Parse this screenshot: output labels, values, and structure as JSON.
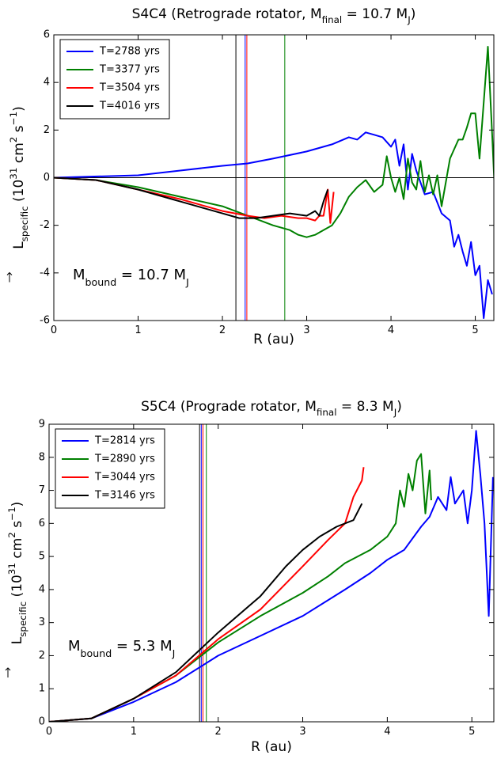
{
  "chart_data": [
    {
      "type": "line",
      "title": [
        {
          "text": "S4C4 (Retrograde rotator,  M"
        },
        {
          "text": "final",
          "shift": "sub"
        },
        {
          "text": " = 10.7 M"
        },
        {
          "text": "J",
          "shift": "sub"
        },
        {
          "text": ")"
        }
      ],
      "xlabel": [
        {
          "text": "R (au)"
        }
      ],
      "ylabel": [
        {
          "text": "L"
        },
        {
          "text": "specific",
          "shift": "sub"
        },
        {
          "text": " (10"
        },
        {
          "text": "31",
          "shift": "super"
        },
        {
          "text": " cm"
        },
        {
          "text": "2",
          "shift": "super"
        },
        {
          "text": " s"
        },
        {
          "text": "−1",
          "shift": "super"
        },
        {
          "text": ")"
        }
      ],
      "annotation": [
        {
          "text": "M"
        },
        {
          "text": "bound",
          "shift": "sub"
        },
        {
          "text": " = 10.7 M"
        },
        {
          "text": "J",
          "shift": "sub"
        }
      ],
      "xlim": [
        0,
        5.22
      ],
      "ylim": [
        -6,
        6
      ],
      "xticks": [
        0,
        1,
        2,
        3,
        4,
        5
      ],
      "yticks": [
        -6,
        -4,
        -2,
        0,
        2,
        4,
        6
      ],
      "hline": 0,
      "legend": "upper left",
      "series": [
        {
          "name": "T=2788 yrs",
          "color": "#0000ff",
          "vline": 2.27,
          "x": [
            0,
            1,
            1.5,
            2,
            2.3,
            2.6,
            3,
            3.3,
            3.5,
            3.6,
            3.7,
            3.8,
            3.9,
            4.0,
            4.05,
            4.1,
            4.15,
            4.2,
            4.25,
            4.3,
            4.4,
            4.5,
            4.6,
            4.7,
            4.75,
            4.8,
            4.85,
            4.9,
            4.95,
            5.0,
            5.05,
            5.1,
            5.15,
            5.2
          ],
          "values": [
            0,
            0.1,
            0.3,
            0.5,
            0.6,
            0.8,
            1.1,
            1.4,
            1.7,
            1.6,
            1.9,
            1.8,
            1.7,
            1.3,
            1.6,
            0.5,
            1.4,
            -0.5,
            1.0,
            0.3,
            -0.7,
            -0.6,
            -1.5,
            -1.8,
            -2.9,
            -2.4,
            -3.1,
            -3.7,
            -2.7,
            -4.1,
            -3.7,
            -5.9,
            -4.3,
            -4.9
          ]
        },
        {
          "name": "T=3377 yrs",
          "color": "#008000",
          "vline": 2.74,
          "x": [
            0,
            0.5,
            1,
            1.5,
            2,
            2.3,
            2.6,
            2.8,
            2.9,
            3.0,
            3.1,
            3.2,
            3.3,
            3.4,
            3.5,
            3.6,
            3.7,
            3.8,
            3.9,
            3.95,
            4.0,
            4.05,
            4.1,
            4.15,
            4.2,
            4.25,
            4.3,
            4.35,
            4.4,
            4.45,
            4.5,
            4.55,
            4.6,
            4.7,
            4.8,
            4.85,
            4.9,
            4.95,
            5.0,
            5.05,
            5.15,
            5.2,
            5.25
          ],
          "values": [
            0,
            -0.1,
            -0.4,
            -0.8,
            -1.2,
            -1.6,
            -2.0,
            -2.2,
            -2.4,
            -2.5,
            -2.4,
            -2.2,
            -2.0,
            -1.5,
            -0.8,
            -0.4,
            -0.1,
            -0.6,
            -0.3,
            0.9,
            0,
            -0.6,
            0,
            -0.9,
            0.8,
            -0.2,
            -0.5,
            0.7,
            -0.6,
            0.1,
            -0.7,
            0.1,
            -1.2,
            0.8,
            1.6,
            1.6,
            2.1,
            2.7,
            2.7,
            0.8,
            5.5,
            1.8,
            -2.1
          ]
        },
        {
          "name": "T=3504 yrs",
          "color": "#ff0000",
          "vline": 2.29,
          "x": [
            0,
            0.5,
            1,
            1.5,
            2,
            2.3,
            2.5,
            2.7,
            2.9,
            3.0,
            3.1,
            3.15,
            3.2,
            3.25,
            3.28,
            3.32
          ],
          "values": [
            0,
            -0.1,
            -0.5,
            -0.9,
            -1.4,
            -1.6,
            -1.7,
            -1.6,
            -1.7,
            -1.7,
            -1.8,
            -1.6,
            -1.6,
            -0.5,
            -1.9,
            -0.6
          ]
        },
        {
          "name": "T=4016 yrs",
          "color": "#000000",
          "vline": 2.16,
          "x": [
            0,
            0.5,
            1,
            1.5,
            2,
            2.2,
            2.4,
            2.6,
            2.8,
            3,
            3.1,
            3.15,
            3.2,
            3.25
          ],
          "values": [
            0,
            -0.1,
            -0.5,
            -1.0,
            -1.5,
            -1.7,
            -1.7,
            -1.6,
            -1.5,
            -1.6,
            -1.4,
            -1.6,
            -1.0,
            -0.5
          ]
        }
      ]
    },
    {
      "type": "line",
      "title": [
        {
          "text": "S5C4 (Prograde rotator,  M"
        },
        {
          "text": "final",
          "shift": "sub"
        },
        {
          "text": " = 8.3 M"
        },
        {
          "text": "J",
          "shift": "sub"
        },
        {
          "text": ")"
        }
      ],
      "xlabel": [
        {
          "text": "R (au)"
        }
      ],
      "ylabel": [
        {
          "text": "L"
        },
        {
          "text": "specific",
          "shift": "sub"
        },
        {
          "text": " (10"
        },
        {
          "text": "31",
          "shift": "super"
        },
        {
          "text": " cm"
        },
        {
          "text": "2",
          "shift": "super"
        },
        {
          "text": " s"
        },
        {
          "text": "−1",
          "shift": "super"
        },
        {
          "text": ")"
        }
      ],
      "annotation": [
        {
          "text": "M"
        },
        {
          "text": "bound",
          "shift": "sub"
        },
        {
          "text": " = 5.3 M"
        },
        {
          "text": "J",
          "shift": "sub"
        }
      ],
      "xlim": [
        0,
        5.26
      ],
      "ylim": [
        0,
        9
      ],
      "xticks": [
        0,
        1,
        2,
        3,
        4,
        5
      ],
      "yticks": [
        0,
        1,
        2,
        3,
        4,
        5,
        6,
        7,
        8,
        9
      ],
      "legend": "upper left",
      "series": [
        {
          "name": "T=2814 yrs",
          "color": "#0000ff",
          "vline": 1.8,
          "x": [
            0,
            0.5,
            1,
            1.5,
            2,
            2.5,
            3,
            3.5,
            3.8,
            4,
            4.2,
            4.4,
            4.5,
            4.6,
            4.7,
            4.75,
            4.8,
            4.9,
            4.95,
            5.0,
            5.05,
            5.1,
            5.15,
            5.2,
            5.25
          ],
          "values": [
            0,
            0.1,
            0.6,
            1.2,
            2.0,
            2.6,
            3.2,
            4.0,
            4.5,
            4.9,
            5.2,
            5.9,
            6.2,
            6.8,
            6.4,
            7.4,
            6.6,
            7.0,
            6.0,
            7.0,
            8.8,
            7.5,
            6.0,
            3.2,
            7.4
          ]
        },
        {
          "name": "T=2890 yrs",
          "color": "#008000",
          "vline": 1.86,
          "x": [
            0,
            0.5,
            1,
            1.5,
            2,
            2.5,
            3,
            3.3,
            3.5,
            3.8,
            4,
            4.1,
            4.15,
            4.2,
            4.25,
            4.3,
            4.35,
            4.4,
            4.45,
            4.5,
            4.52
          ],
          "values": [
            0,
            0.1,
            0.7,
            1.4,
            2.4,
            3.2,
            3.9,
            4.4,
            4.8,
            5.2,
            5.6,
            6.0,
            7.0,
            6.5,
            7.5,
            7.0,
            7.9,
            8.1,
            6.3,
            7.6,
            6.7
          ]
        },
        {
          "name": "T=3044 yrs",
          "color": "#ff0000",
          "vline": 1.82,
          "x": [
            0,
            0.5,
            1,
            1.5,
            2,
            2.5,
            3,
            3.3,
            3.5,
            3.6,
            3.7,
            3.72
          ],
          "values": [
            0,
            0.1,
            0.7,
            1.4,
            2.5,
            3.4,
            4.7,
            5.5,
            6.0,
            6.8,
            7.3,
            7.7
          ]
        },
        {
          "name": "T=3146 yrs",
          "color": "#000000",
          "vline": 1.78,
          "x": [
            0,
            0.5,
            1,
            1.5,
            2,
            2.5,
            2.8,
            3,
            3.2,
            3.4,
            3.6,
            3.7
          ],
          "values": [
            0,
            0.1,
            0.7,
            1.5,
            2.7,
            3.8,
            4.7,
            5.2,
            5.6,
            5.9,
            6.1,
            6.6
          ]
        }
      ]
    }
  ]
}
